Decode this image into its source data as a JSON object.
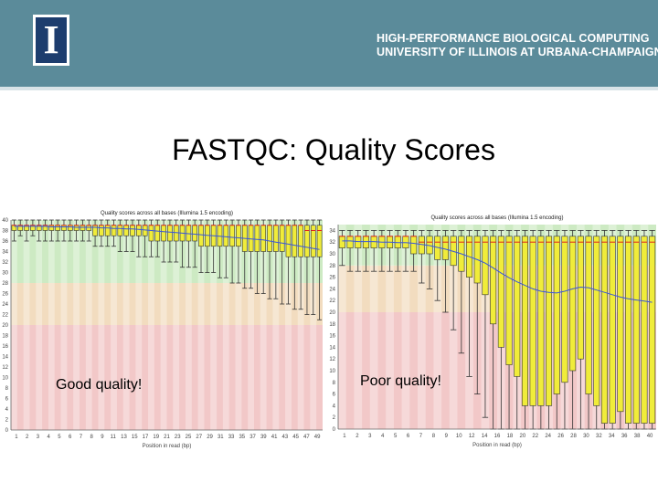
{
  "header": {
    "logo_letter": "I",
    "org_line1": "HIGH-PERFORMANCE BIOLOGICAL COMPUTING",
    "org_line2": "UNIVERSITY OF ILLINOIS AT URBANA-CHAMPAIGN",
    "bg_color": "#5b8b9a"
  },
  "slide": {
    "title": "FASTQC: Quality Scores"
  },
  "chart_data": [
    {
      "type": "boxplot",
      "title": "Quality scores across all bases (Illumina 1.5 encoding)",
      "xlabel": "Position in read (bp)",
      "caption": "Good quality!",
      "x_tick_labels": [
        "1",
        "2",
        "3",
        "4",
        "5",
        "6",
        "7",
        "8",
        "9",
        "11",
        "13",
        "15",
        "17",
        "19",
        "21",
        "23",
        "25",
        "27",
        "29",
        "31",
        "33",
        "35",
        "37",
        "39",
        "41",
        "43",
        "45",
        "47",
        "49"
      ],
      "y_tick_labels": [
        "0",
        "2",
        "4",
        "6",
        "8",
        "10",
        "12",
        "14",
        "16",
        "18",
        "20",
        "22",
        "24",
        "26",
        "28",
        "30",
        "32",
        "34",
        "36",
        "38",
        "40"
      ],
      "ylim": [
        0,
        40
      ],
      "bands": [
        {
          "from": 0,
          "to": 20,
          "color": "#f2c8c8"
        },
        {
          "from": 20,
          "to": 28,
          "color": "#f2dcbf"
        },
        {
          "from": 28,
          "to": 40,
          "color": "#cdeac3"
        }
      ],
      "boxes": [
        {
          "lw": 36,
          "q1": 38,
          "med": 39,
          "q3": 39,
          "uw": 40
        },
        {
          "lw": 37,
          "q1": 38,
          "med": 39,
          "q3": 39,
          "uw": 40
        },
        {
          "lw": 36,
          "q1": 38,
          "med": 39,
          "q3": 39,
          "uw": 40
        },
        {
          "lw": 37,
          "q1": 38,
          "med": 39,
          "q3": 39,
          "uw": 40
        },
        {
          "lw": 36,
          "q1": 38,
          "med": 39,
          "q3": 39,
          "uw": 40
        },
        {
          "lw": 36,
          "q1": 38,
          "med": 39,
          "q3": 39,
          "uw": 40
        },
        {
          "lw": 36,
          "q1": 38,
          "med": 39,
          "q3": 39,
          "uw": 40
        },
        {
          "lw": 36,
          "q1": 38,
          "med": 39,
          "q3": 39,
          "uw": 40
        },
        {
          "lw": 36,
          "q1": 38,
          "med": 39,
          "q3": 39,
          "uw": 40
        },
        {
          "lw": 36,
          "q1": 38,
          "med": 39,
          "q3": 39,
          "uw": 40
        },
        {
          "lw": 36,
          "q1": 38,
          "med": 39,
          "q3": 39,
          "uw": 40
        },
        {
          "lw": 36,
          "q1": 38,
          "med": 39,
          "q3": 39,
          "uw": 40
        },
        {
          "lw": 36,
          "q1": 38,
          "med": 39,
          "q3": 39,
          "uw": 40
        },
        {
          "lw": 35,
          "q1": 37,
          "med": 39,
          "q3": 39,
          "uw": 40
        },
        {
          "lw": 35,
          "q1": 37,
          "med": 39,
          "q3": 39,
          "uw": 40
        },
        {
          "lw": 35,
          "q1": 37,
          "med": 39,
          "q3": 39,
          "uw": 40
        },
        {
          "lw": 35,
          "q1": 37,
          "med": 39,
          "q3": 39,
          "uw": 40
        },
        {
          "lw": 34,
          "q1": 37,
          "med": 39,
          "q3": 39,
          "uw": 40
        },
        {
          "lw": 34,
          "q1": 37,
          "med": 39,
          "q3": 39,
          "uw": 40
        },
        {
          "lw": 34,
          "q1": 37,
          "med": 39,
          "q3": 39,
          "uw": 40
        },
        {
          "lw": 33,
          "q1": 37,
          "med": 39,
          "q3": 39,
          "uw": 40
        },
        {
          "lw": 33,
          "q1": 37,
          "med": 39,
          "q3": 39,
          "uw": 40
        },
        {
          "lw": 33,
          "q1": 36,
          "med": 39,
          "q3": 39,
          "uw": 40
        },
        {
          "lw": 33,
          "q1": 36,
          "med": 39,
          "q3": 39,
          "uw": 40
        },
        {
          "lw": 32,
          "q1": 36,
          "med": 39,
          "q3": 39,
          "uw": 40
        },
        {
          "lw": 32,
          "q1": 36,
          "med": 39,
          "q3": 39,
          "uw": 40
        },
        {
          "lw": 32,
          "q1": 36,
          "med": 39,
          "q3": 39,
          "uw": 40
        },
        {
          "lw": 31,
          "q1": 36,
          "med": 39,
          "q3": 39,
          "uw": 40
        },
        {
          "lw": 31,
          "q1": 36,
          "med": 39,
          "q3": 39,
          "uw": 40
        },
        {
          "lw": 31,
          "q1": 36,
          "med": 39,
          "q3": 39,
          "uw": 40
        },
        {
          "lw": 30,
          "q1": 35,
          "med": 39,
          "q3": 39,
          "uw": 40
        },
        {
          "lw": 30,
          "q1": 35,
          "med": 39,
          "q3": 39,
          "uw": 40
        },
        {
          "lw": 30,
          "q1": 35,
          "med": 39,
          "q3": 39,
          "uw": 40
        },
        {
          "lw": 29,
          "q1": 35,
          "med": 39,
          "q3": 39,
          "uw": 40
        },
        {
          "lw": 29,
          "q1": 35,
          "med": 39,
          "q3": 39,
          "uw": 40
        },
        {
          "lw": 28,
          "q1": 35,
          "med": 39,
          "q3": 39,
          "uw": 40
        },
        {
          "lw": 28,
          "q1": 35,
          "med": 39,
          "q3": 39,
          "uw": 40
        },
        {
          "lw": 27,
          "q1": 34,
          "med": 39,
          "q3": 39,
          "uw": 40
        },
        {
          "lw": 27,
          "q1": 34,
          "med": 39,
          "q3": 39,
          "uw": 40
        },
        {
          "lw": 26,
          "q1": 34,
          "med": 39,
          "q3": 39,
          "uw": 40
        },
        {
          "lw": 26,
          "q1": 34,
          "med": 39,
          "q3": 39,
          "uw": 40
        },
        {
          "lw": 25,
          "q1": 34,
          "med": 39,
          "q3": 39,
          "uw": 40
        },
        {
          "lw": 25,
          "q1": 34,
          "med": 39,
          "q3": 39,
          "uw": 40
        },
        {
          "lw": 24,
          "q1": 34,
          "med": 39,
          "q3": 39,
          "uw": 40
        },
        {
          "lw": 24,
          "q1": 33,
          "med": 39,
          "q3": 39,
          "uw": 40
        },
        {
          "lw": 23,
          "q1": 33,
          "med": 39,
          "q3": 39,
          "uw": 40
        },
        {
          "lw": 23,
          "q1": 33,
          "med": 39,
          "q3": 39,
          "uw": 40
        },
        {
          "lw": 22,
          "q1": 33,
          "med": 38,
          "q3": 39,
          "uw": 40
        },
        {
          "lw": 22,
          "q1": 33,
          "med": 38,
          "q3": 39,
          "uw": 40
        },
        {
          "lw": 21,
          "q1": 33,
          "med": 38,
          "q3": 39,
          "uw": 40
        }
      ],
      "mean": [
        38.8,
        38.8,
        38.8,
        38.8,
        38.8,
        38.8,
        38.7,
        38.7,
        38.7,
        38.7,
        38.6,
        38.6,
        38.6,
        38.6,
        38.5,
        38.5,
        38.4,
        38.4,
        38.3,
        38.3,
        38.2,
        38.1,
        38.0,
        37.9,
        37.8,
        37.7,
        37.6,
        37.5,
        37.4,
        37.3,
        37.2,
        37.1,
        37.0,
        36.9,
        36.8,
        36.7,
        36.6,
        36.5,
        36.4,
        36.3,
        36.2,
        36.0,
        35.8,
        35.6,
        35.4,
        35.2,
        35.0,
        34.8,
        34.6,
        34.4
      ]
    },
    {
      "type": "boxplot",
      "title": "Quality scores across all bases (Illumina 1.5 encoding)",
      "xlabel": "Position in read (bp)",
      "caption": "Poor quality!",
      "x_tick_labels": [
        "1",
        "2",
        "3",
        "4",
        "5",
        "6",
        "7",
        "8",
        "9",
        "10",
        "12",
        "14",
        "16",
        "18",
        "20",
        "22",
        "24",
        "26",
        "28",
        "30",
        "32",
        "34",
        "36",
        "38",
        "40"
      ],
      "y_tick_labels": [
        "0",
        "2",
        "4",
        "6",
        "8",
        "10",
        "12",
        "14",
        "16",
        "18",
        "20",
        "22",
        "24",
        "26",
        "28",
        "30",
        "32",
        "34"
      ],
      "ylim": [
        0,
        35
      ],
      "bands": [
        {
          "from": 0,
          "to": 20,
          "color": "#f2c8c8"
        },
        {
          "from": 20,
          "to": 28,
          "color": "#f2dcbf"
        },
        {
          "from": 28,
          "to": 35,
          "color": "#cdeac3"
        }
      ],
      "boxes": [
        {
          "lw": 28,
          "q1": 31,
          "med": 33,
          "q3": 33,
          "uw": 34
        },
        {
          "lw": 27,
          "q1": 31,
          "med": 33,
          "q3": 33,
          "uw": 34
        },
        {
          "lw": 27,
          "q1": 31,
          "med": 33,
          "q3": 33,
          "uw": 34
        },
        {
          "lw": 27,
          "q1": 31,
          "med": 33,
          "q3": 33,
          "uw": 34
        },
        {
          "lw": 27,
          "q1": 31,
          "med": 33,
          "q3": 33,
          "uw": 34
        },
        {
          "lw": 27,
          "q1": 31,
          "med": 33,
          "q3": 33,
          "uw": 34
        },
        {
          "lw": 27,
          "q1": 31,
          "med": 33,
          "q3": 33,
          "uw": 34
        },
        {
          "lw": 27,
          "q1": 31,
          "med": 33,
          "q3": 33,
          "uw": 34
        },
        {
          "lw": 27,
          "q1": 31,
          "med": 33,
          "q3": 33,
          "uw": 34
        },
        {
          "lw": 27,
          "q1": 30,
          "med": 33,
          "q3": 33,
          "uw": 34
        },
        {
          "lw": 25,
          "q1": 30,
          "med": 32,
          "q3": 33,
          "uw": 34
        },
        {
          "lw": 24,
          "q1": 30,
          "med": 32,
          "q3": 33,
          "uw": 34
        },
        {
          "lw": 22,
          "q1": 29,
          "med": 32,
          "q3": 33,
          "uw": 34
        },
        {
          "lw": 20,
          "q1": 29,
          "med": 32,
          "q3": 33,
          "uw": 34
        },
        {
          "lw": 17,
          "q1": 28,
          "med": 32,
          "q3": 33,
          "uw": 34
        },
        {
          "lw": 13,
          "q1": 27,
          "med": 32,
          "q3": 33,
          "uw": 34
        },
        {
          "lw": 9,
          "q1": 26,
          "med": 32,
          "q3": 33,
          "uw": 34
        },
        {
          "lw": 6,
          "q1": 25,
          "med": 32,
          "q3": 33,
          "uw": 34
        },
        {
          "lw": 2,
          "q1": 23,
          "med": 32,
          "q3": 33,
          "uw": 34
        },
        {
          "lw": 0,
          "q1": 18,
          "med": 32,
          "q3": 33,
          "uw": 34
        },
        {
          "lw": 0,
          "q1": 14,
          "med": 32,
          "q3": 33,
          "uw": 34
        },
        {
          "lw": 0,
          "q1": 11,
          "med": 32,
          "q3": 33,
          "uw": 34
        },
        {
          "lw": 0,
          "q1": 9,
          "med": 32,
          "q3": 33,
          "uw": 34
        },
        {
          "lw": 0,
          "q1": 4,
          "med": 32,
          "q3": 33,
          "uw": 34
        },
        {
          "lw": 0,
          "q1": 4,
          "med": 32,
          "q3": 33,
          "uw": 34
        },
        {
          "lw": 0,
          "q1": 4,
          "med": 32,
          "q3": 33,
          "uw": 34
        },
        {
          "lw": 0,
          "q1": 4,
          "med": 32,
          "q3": 33,
          "uw": 34
        },
        {
          "lw": 0,
          "q1": 6,
          "med": 32,
          "q3": 33,
          "uw": 34
        },
        {
          "lw": 0,
          "q1": 8,
          "med": 32,
          "q3": 33,
          "uw": 34
        },
        {
          "lw": 0,
          "q1": 10,
          "med": 32,
          "q3": 33,
          "uw": 34
        },
        {
          "lw": 0,
          "q1": 12,
          "med": 32,
          "q3": 33,
          "uw": 34
        },
        {
          "lw": 0,
          "q1": 6,
          "med": 32,
          "q3": 33,
          "uw": 34
        },
        {
          "lw": 0,
          "q1": 4,
          "med": 32,
          "q3": 33,
          "uw": 34
        },
        {
          "lw": 0,
          "q1": 1,
          "med": 32,
          "q3": 33,
          "uw": 34
        },
        {
          "lw": 0,
          "q1": 1,
          "med": 32,
          "q3": 33,
          "uw": 34
        },
        {
          "lw": 0,
          "q1": 3,
          "med": 32,
          "q3": 33,
          "uw": 34
        },
        {
          "lw": 0,
          "q1": 1,
          "med": 32,
          "q3": 33,
          "uw": 34
        },
        {
          "lw": 0,
          "q1": 1,
          "med": 32,
          "q3": 33,
          "uw": 34
        },
        {
          "lw": 0,
          "q1": 1,
          "med": 32,
          "q3": 33,
          "uw": 34
        },
        {
          "lw": 0,
          "q1": 1,
          "med": 32,
          "q3": 33,
          "uw": 34
        }
      ],
      "mean": [
        32.2,
        32.2,
        32.1,
        32.1,
        32.1,
        32.0,
        32.0,
        31.9,
        31.9,
        31.8,
        31.6,
        31.4,
        31.1,
        30.8,
        30.4,
        30.0,
        29.5,
        29.0,
        28.4,
        27.6,
        26.7,
        25.9,
        25.2,
        24.6,
        24.0,
        23.6,
        23.4,
        23.3,
        23.6,
        24.0,
        24.3,
        24.2,
        23.8,
        23.4,
        23.0,
        22.6,
        22.3,
        22.1,
        21.9,
        21.7
      ]
    }
  ]
}
